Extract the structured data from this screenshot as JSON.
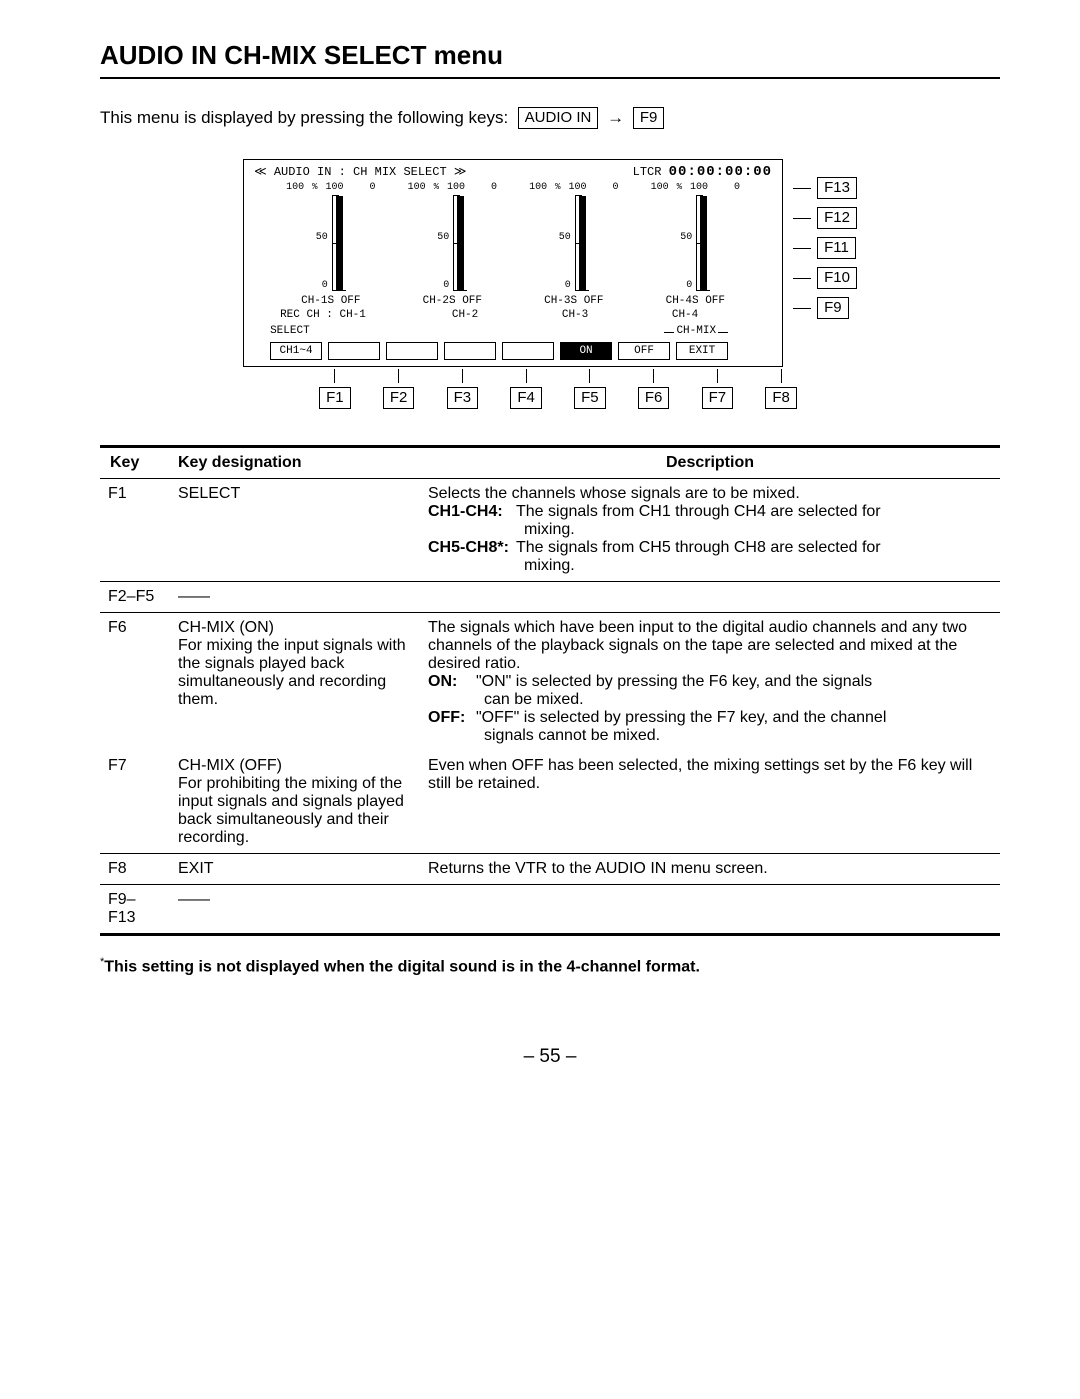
{
  "page": {
    "title": "AUDIO IN CH-MIX SELECT menu",
    "intro_prefix": "This menu is displayed by pressing the following keys:",
    "nav_key1": "AUDIO IN",
    "nav_key2": "F9",
    "page_number": "– 55 –"
  },
  "diagram": {
    "header_left": "≪ AUDIO IN : CH MIX SELECT ≫",
    "header_right_label": "LTCR",
    "header_right_value": "00:00:00:00",
    "bars": [
      {
        "pct": "%",
        "top": "100",
        "side": "100",
        "right": "0",
        "mid": "50",
        "zero": "0",
        "ch_label": "CH-1S OFF",
        "rec": "REC CH : CH-1",
        "fill_h": 94
      },
      {
        "pct": "%",
        "top": "100",
        "side": "100",
        "right": "0",
        "mid": "50",
        "zero": "0",
        "ch_label": "CH-2S OFF",
        "rec": "CH-2",
        "fill_h": 94
      },
      {
        "pct": "%",
        "top": "100",
        "side": "100",
        "right": "0",
        "mid": "50",
        "zero": "0",
        "ch_label": "CH-3S OFF",
        "rec": "CH-3",
        "fill_h": 94
      },
      {
        "pct": "%",
        "top": "100",
        "side": "100",
        "right": "0",
        "mid": "50",
        "zero": "0",
        "ch_label": "CH-4S OFF",
        "rec": "CH-4",
        "fill_h": 94
      }
    ],
    "select_label": "SELECT",
    "chmix_label": "CH-MIX",
    "screen_buttons": [
      "CH1~4",
      "",
      "",
      "",
      "",
      "ON",
      "OFF",
      "EXIT"
    ],
    "on_index": 5,
    "bottom_labels": [
      "F1",
      "F2",
      "F3",
      "F4",
      "F5",
      "F6",
      "F7",
      "F8"
    ],
    "side_labels": [
      "F13",
      "F12",
      "F11",
      "F10",
      "F9"
    ],
    "colors": {
      "border": "#000000",
      "bg": "#ffffff",
      "on_bg": "#000000",
      "on_fg": "#ffffff"
    }
  },
  "table": {
    "headers": [
      "Key",
      "Key designation",
      "Description"
    ],
    "rows": [
      {
        "key": "F1",
        "designation": "SELECT",
        "desc_lines": [
          {
            "plain": "Selects the channels whose signals are to be mixed."
          },
          {
            "label": "CH1-CH4:",
            "text": "The signals from CH1 through CH4 are selected for",
            "cont": "mixing."
          },
          {
            "label": "CH5-CH8*:",
            "text": "The signals from CH5 through CH8 are selected for",
            "cont": "mixing."
          }
        ]
      },
      {
        "key": "F2–F5",
        "designation": "——",
        "desc_lines": []
      },
      {
        "key": "F6",
        "designation": "CH-MIX (ON)\nFor mixing the input signals with the signals played back simultaneously and recording them.",
        "desc_lines": [
          {
            "plain": "The signals which have been input to the digital audio channels and any two channels of the playback signals on the tape are selected and mixed at the desired ratio."
          },
          {
            "label_n": "ON:",
            "text": "\"ON\" is selected by pressing the F6 key, and the signals",
            "cont_n": "can be mixed."
          },
          {
            "label_n": "OFF:",
            "text": "\"OFF\" is selected by pressing the F7 key, and the channel",
            "cont_n": "signals cannot be mixed."
          }
        ],
        "no_bottom": true
      },
      {
        "key": "F7",
        "designation": "CH-MIX (OFF)\nFor prohibiting the mixing of the input signals and signals played back simultaneously and their recording.",
        "desc_lines": [
          {
            "plain": "Even when OFF has been selected, the mixing settings set by the F6 key will still be retained."
          }
        ]
      },
      {
        "key": "F8",
        "designation": "EXIT",
        "desc_lines": [
          {
            "plain": "Returns the VTR to the AUDIO IN menu screen."
          }
        ]
      },
      {
        "key": "F9–F13",
        "designation": "——",
        "desc_lines": []
      }
    ]
  },
  "footnote": {
    "star": "*",
    "text": "This setting is not displayed when the digital sound is in the 4-channel format."
  }
}
